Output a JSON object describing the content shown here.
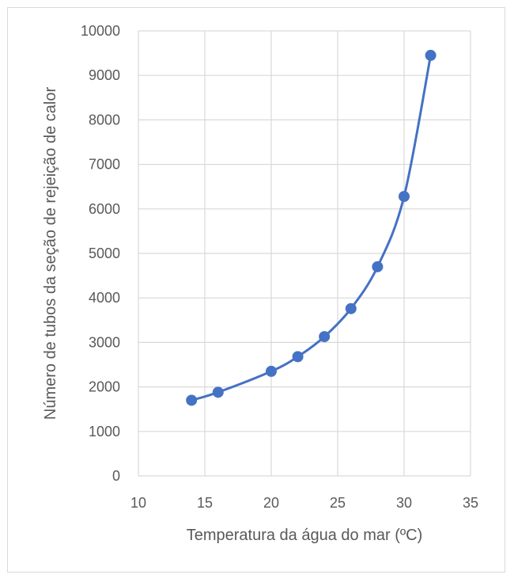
{
  "chart_data": {
    "type": "scatter",
    "title": "",
    "xlabel": "Temperatura da água do mar (ºC)",
    "ylabel": "Número de tubos da seção de rejeição de calor",
    "xlim": [
      10,
      35
    ],
    "ylim": [
      0,
      10000
    ],
    "xticks": [
      "10",
      "15",
      "20",
      "25",
      "30",
      "35"
    ],
    "yticks": [
      "0",
      "1000",
      "2000",
      "3000",
      "4000",
      "5000",
      "6000",
      "7000",
      "8000",
      "9000",
      "10000"
    ],
    "grid": true,
    "legend": "none",
    "series": [
      {
        "color": "#4472c4",
        "style": "smooth-line-with-markers",
        "x": [
          14,
          16,
          20,
          22,
          24,
          26,
          28,
          30,
          32
        ],
        "y": [
          1700,
          1880,
          2350,
          2680,
          3130,
          3760,
          4700,
          6280,
          9450
        ]
      }
    ]
  },
  "colors": {
    "series": "#4472c4",
    "grid": "#d9d9d9",
    "text": "#595959",
    "frame": "#d9d9d9"
  }
}
